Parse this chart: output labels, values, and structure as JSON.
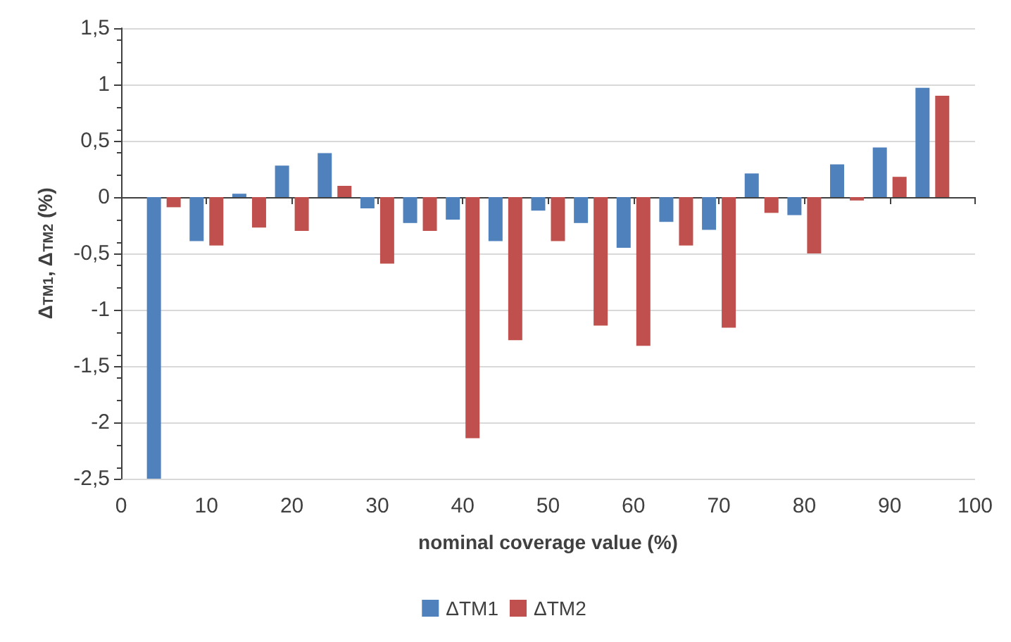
{
  "chart_data": {
    "type": "bar",
    "xlabel": "nominal coverage value (%)",
    "ylabel": "Δ$_{TM1}$, Δ$_{TM2}$ (%)",
    "x": [
      5,
      10,
      15,
      20,
      25,
      30,
      35,
      40,
      45,
      50,
      55,
      60,
      65,
      70,
      75,
      80,
      85,
      90,
      95
    ],
    "series": [
      {
        "name": "ΔTM1",
        "color": "#4f81bd",
        "values": [
          -2.5,
          -0.39,
          0.03,
          0.28,
          0.39,
          -0.1,
          -0.23,
          -0.2,
          -0.39,
          -0.12,
          -0.23,
          -0.45,
          -0.22,
          -0.29,
          0.21,
          -0.16,
          0.29,
          0.44,
          0.97
        ]
      },
      {
        "name": "ΔTM2",
        "color": "#c0504d",
        "values": [
          -0.09,
          -0.43,
          -0.27,
          -0.3,
          0.1,
          -0.59,
          -0.3,
          -2.14,
          -1.27,
          -0.39,
          -1.14,
          -1.32,
          -0.43,
          -1.16,
          -0.14,
          -0.5,
          -0.03,
          0.18,
          0.9
        ]
      }
    ],
    "xlim": [
      0,
      100
    ],
    "xticks": [
      0,
      10,
      20,
      30,
      40,
      50,
      60,
      70,
      80,
      90,
      100
    ],
    "ylim": [
      -2.5,
      1.5
    ],
    "yticks": [
      {
        "value": -2.5,
        "label": "-2,5"
      },
      {
        "value": -2,
        "label": "-2"
      },
      {
        "value": -1.5,
        "label": "-1,5"
      },
      {
        "value": -1,
        "label": "-1"
      },
      {
        "value": -0.5,
        "label": "-0,5"
      },
      {
        "value": 0,
        "label": "0"
      },
      {
        "value": 0.5,
        "label": "0,5"
      },
      {
        "value": 1,
        "label": "1"
      },
      {
        "value": 1.5,
        "label": "1,5"
      }
    ],
    "grid": "y",
    "legend": "bottom"
  }
}
